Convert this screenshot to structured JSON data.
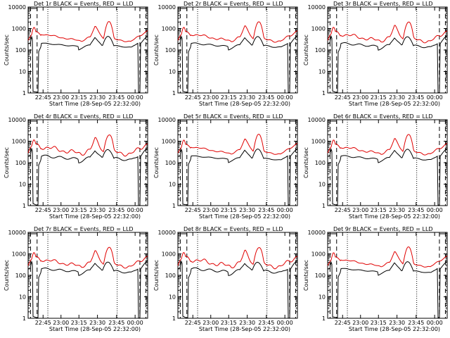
{
  "colors": {
    "events": "#000000",
    "lld": "#e00000",
    "axes": "#000000"
  },
  "chart_data": [
    {
      "type": "line",
      "title": "Det 1r BLACK = Events, RED = LLD",
      "xlabel": "Start Time (28-Sep-05 22:32:00)",
      "ylabel": "Counts/sec",
      "x_ticks": [
        "22:45",
        "23:00",
        "23:15",
        "23:30",
        "23:45",
        "00:00"
      ],
      "y_ticks": [
        "1",
        "10",
        "100",
        "1000",
        "10000"
      ],
      "ylim": [
        1,
        10000
      ],
      "series": [
        {
          "name": "Events",
          "color": "#000000"
        },
        {
          "name": "LLD",
          "color": "#e00000"
        }
      ]
    },
    {
      "type": "line",
      "title": "Det 2r BLACK = Events, RED = LLD",
      "xlabel": "Start Time (28-Sep-05 22:32:00)",
      "ylabel": "Counts/sec",
      "x_ticks": [
        "22:45",
        "23:00",
        "23:15",
        "23:30",
        "23:45",
        "00:00"
      ],
      "y_ticks": [
        "1",
        "10",
        "100",
        "1000",
        "10000"
      ],
      "ylim": [
        1,
        10000
      ],
      "series": [
        {
          "name": "Events",
          "color": "#000000"
        },
        {
          "name": "LLD",
          "color": "#e00000"
        }
      ]
    },
    {
      "type": "line",
      "title": "Det 3r BLACK = Events, RED = LLD",
      "xlabel": "Start Time (28-Sep-05 22:32:00)",
      "ylabel": "Counts/sec",
      "x_ticks": [
        "22:45",
        "23:00",
        "23:15",
        "23:30",
        "23:45",
        "00:00"
      ],
      "y_ticks": [
        "1",
        "10",
        "100",
        "1000",
        "10000"
      ],
      "ylim": [
        1,
        10000
      ],
      "series": [
        {
          "name": "Events",
          "color": "#000000"
        },
        {
          "name": "LLD",
          "color": "#e00000"
        }
      ]
    },
    {
      "type": "line",
      "title": "Det 4r BLACK = Events, RED = LLD",
      "xlabel": "Start Time (28-Sep-05 22:32:00)",
      "ylabel": "Counts/sec",
      "x_ticks": [
        "22:45",
        "23:00",
        "23:15",
        "23:30",
        "23:45",
        "00:00"
      ],
      "y_ticks": [
        "1",
        "10",
        "100",
        "1000",
        "10000"
      ],
      "ylim": [
        1,
        10000
      ],
      "series": [
        {
          "name": "Events",
          "color": "#000000"
        },
        {
          "name": "LLD",
          "color": "#e00000"
        }
      ]
    },
    {
      "type": "line",
      "title": "Det 5r BLACK = Events, RED = LLD",
      "xlabel": "Start Time (28-Sep-05 22:32:00)",
      "ylabel": "Counts/sec",
      "x_ticks": [
        "22:45",
        "23:00",
        "23:15",
        "23:30",
        "23:45",
        "00:00"
      ],
      "y_ticks": [
        "1",
        "10",
        "100",
        "1000",
        "10000"
      ],
      "ylim": [
        1,
        10000
      ],
      "series": [
        {
          "name": "Events",
          "color": "#000000"
        },
        {
          "name": "LLD",
          "color": "#e00000"
        }
      ]
    },
    {
      "type": "line",
      "title": "Det 6r BLACK = Events, RED = LLD",
      "xlabel": "Start Time (28-Sep-05 22:32:00)",
      "ylabel": "Counts/sec",
      "x_ticks": [
        "22:45",
        "23:00",
        "23:15",
        "23:30",
        "23:45",
        "00:00"
      ],
      "y_ticks": [
        "1",
        "10",
        "100",
        "1000",
        "10000"
      ],
      "ylim": [
        1,
        10000
      ],
      "series": [
        {
          "name": "Events",
          "color": "#000000"
        },
        {
          "name": "LLD",
          "color": "#e00000"
        }
      ]
    },
    {
      "type": "line",
      "title": "Det 7r BLACK = Events, RED = LLD",
      "xlabel": "Start Time (28-Sep-05 22:32:00)",
      "ylabel": "Counts/sec",
      "x_ticks": [
        "22:45",
        "23:00",
        "23:15",
        "23:30",
        "23:45",
        "00:00"
      ],
      "y_ticks": [
        "1",
        "10",
        "100",
        "1000",
        "10000"
      ],
      "ylim": [
        1,
        10000
      ],
      "series": [
        {
          "name": "Events",
          "color": "#000000"
        },
        {
          "name": "LLD",
          "color": "#e00000"
        }
      ]
    },
    {
      "type": "line",
      "title": "Det 8r BLACK = Events, RED = LLD",
      "xlabel": "Start Time (28-Sep-05 22:32:00)",
      "ylabel": "Counts/sec",
      "x_ticks": [
        "22:45",
        "23:00",
        "23:15",
        "23:30",
        "23:45",
        "00:00"
      ],
      "y_ticks": [
        "1",
        "10",
        "100",
        "1000",
        "10000"
      ],
      "ylim": [
        1,
        10000
      ],
      "series": [
        {
          "name": "Events",
          "color": "#000000"
        },
        {
          "name": "LLD",
          "color": "#e00000"
        }
      ]
    },
    {
      "type": "line",
      "title": "Det 9r BLACK = Events, RED = LLD",
      "xlabel": "Start Time (28-Sep-05 22:32:00)",
      "ylabel": "Counts/sec",
      "x_ticks": [
        "22:45",
        "23:00",
        "23:15",
        "23:30",
        "23:45",
        "00:00"
      ],
      "y_ticks": [
        "1",
        "10",
        "100",
        "1000",
        "10000"
      ],
      "ylim": [
        1,
        10000
      ],
      "series": [
        {
          "name": "Events",
          "color": "#000000"
        },
        {
          "name": "LLD",
          "color": "#e00000"
        }
      ]
    }
  ]
}
